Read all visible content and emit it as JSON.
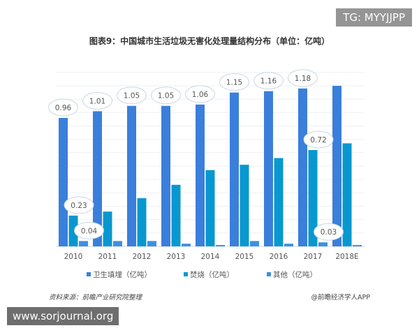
{
  "chart_data": {
    "type": "bar",
    "title": "图表9：中国城市生活垃圾无害化处理量结构分布（单位：亿吨）",
    "categories": [
      "2010",
      "2011",
      "2012",
      "2013",
      "2014",
      "2015",
      "2016",
      "2017",
      "2018E"
    ],
    "series": [
      {
        "name": "卫生填埋（亿吨）",
        "color": "#3a7fdb",
        "values": [
          0.96,
          1.01,
          1.05,
          1.05,
          1.06,
          1.15,
          1.16,
          1.18,
          1.2
        ]
      },
      {
        "name": "焚烧（亿吨）",
        "color": "#0898cf",
        "values": [
          0.23,
          0.26,
          0.36,
          0.46,
          0.57,
          0.61,
          0.66,
          0.72,
          0.77
        ]
      },
      {
        "name": "其他（亿吨）",
        "color": "#3d90e0",
        "values": [
          0.04,
          0.04,
          0.04,
          0.02,
          0.01,
          0.04,
          0.02,
          0.03,
          0.01
        ]
      }
    ],
    "data_labels": [
      {
        "series": 0,
        "index": 0,
        "text": "0.96"
      },
      {
        "series": 0,
        "index": 1,
        "text": "1.01"
      },
      {
        "series": 0,
        "index": 2,
        "text": "1.05"
      },
      {
        "series": 0,
        "index": 3,
        "text": "1.05"
      },
      {
        "series": 0,
        "index": 4,
        "text": "1.06"
      },
      {
        "series": 0,
        "index": 5,
        "text": "1.15"
      },
      {
        "series": 0,
        "index": 6,
        "text": "1.16"
      },
      {
        "series": 0,
        "index": 7,
        "text": "1.18"
      },
      {
        "series": 1,
        "index": 0,
        "text": "0.23"
      },
      {
        "series": 1,
        "index": 7,
        "text": "0.72"
      },
      {
        "series": 2,
        "index": 0,
        "text": "0.04"
      },
      {
        "series": 2,
        "index": 7,
        "text": "0.03"
      }
    ],
    "ylim": [
      0,
      1.4
    ],
    "grid": true,
    "legend": "bottom",
    "xlabel": "",
    "ylabel": ""
  },
  "source": "资料来源：前瞻产业研究院整理",
  "brand": "@前瞻经济学人APP",
  "watermark_top": "TG: MYYJJPP",
  "watermark_bottom": "www.sorjournal.org"
}
